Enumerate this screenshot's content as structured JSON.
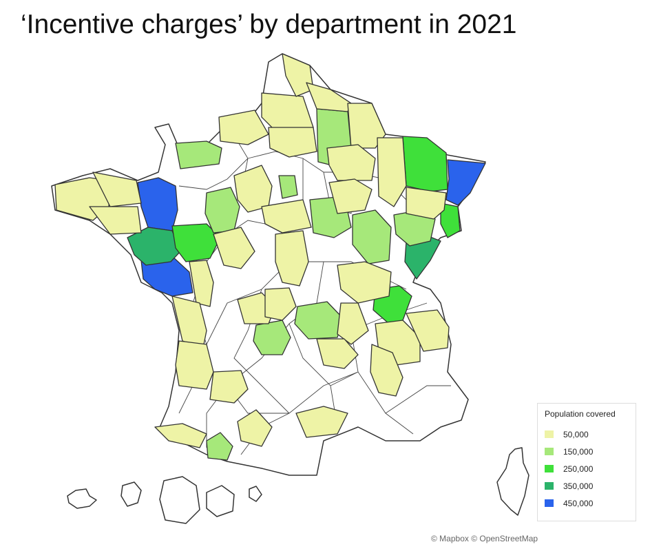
{
  "title": "‘Incentive charges’ by department in 2021",
  "legend": {
    "title": "Population covered",
    "items": [
      {
        "value": 50000,
        "label": "50,000",
        "color": "#eef3a6"
      },
      {
        "value": 150000,
        "label": "150,000",
        "color": "#a6e87a"
      },
      {
        "value": 250000,
        "label": "250,000",
        "color": "#3fe03a"
      },
      {
        "value": 350000,
        "label": "350,000",
        "color": "#2bb36a"
      },
      {
        "value": 450000,
        "label": "450,000",
        "color": "#2a63ec"
      }
    ]
  },
  "attribution": "© Mapbox © OpenStreetMap"
}
